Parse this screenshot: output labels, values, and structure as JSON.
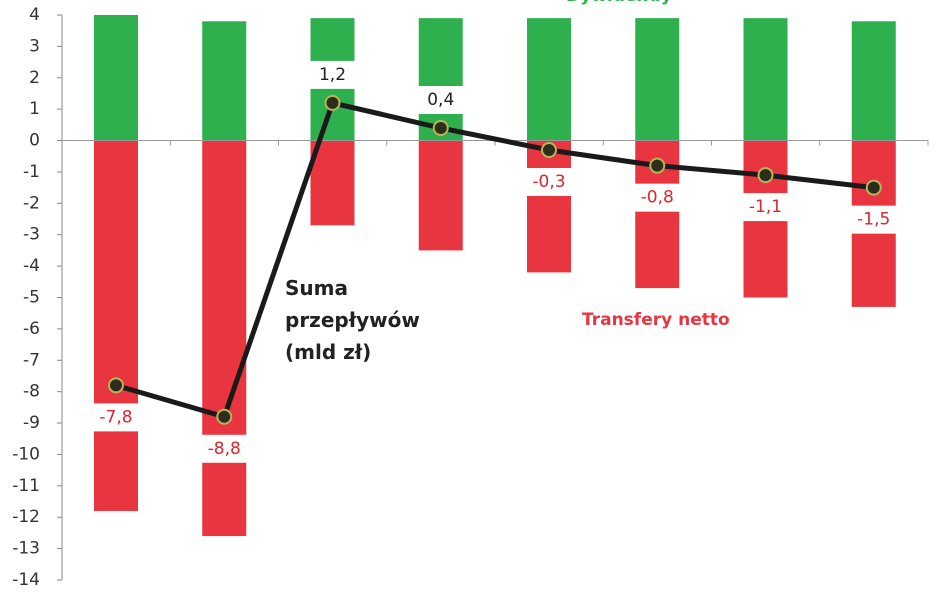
{
  "chart_data": {
    "type": "bar_line",
    "categories": [
      null,
      null,
      null,
      null,
      null,
      null,
      null,
      null
    ],
    "series": [
      {
        "name": "Dywidendy",
        "type": "bar",
        "color": "#2fb04e",
        "values": [
          4.0,
          3.8,
          3.9,
          3.9,
          3.9,
          3.9,
          3.9,
          3.8
        ]
      },
      {
        "name": "Transfery netto",
        "type": "bar",
        "color": "#e8353f",
        "values": [
          -11.8,
          -12.6,
          -2.7,
          -3.5,
          -4.2,
          -4.7,
          -5.0,
          -5.3
        ]
      },
      {
        "name": "Suma przepływów (mld zł)",
        "type": "line",
        "color": "#1a1a1a",
        "values": [
          -7.8,
          -8.8,
          1.2,
          0.4,
          -0.3,
          -0.8,
          -1.1,
          -1.5
        ],
        "value_labels": [
          "-7,8",
          "-8,8",
          "1,2",
          "0,4",
          "-0,3",
          "-0,8",
          "-1,1",
          "-1,5"
        ]
      }
    ],
    "ylim": [
      -14,
      4
    ],
    "yticks": [
      -14,
      -13,
      -12,
      -11,
      -10,
      -9,
      -8,
      -7,
      -6,
      -5,
      -4,
      -3,
      -2,
      -1,
      0,
      1,
      2,
      3,
      4
    ]
  }
}
